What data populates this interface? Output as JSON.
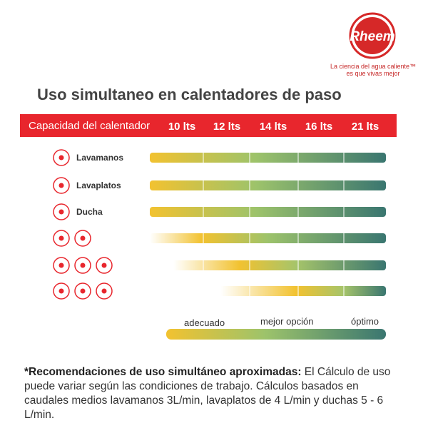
{
  "logo": {
    "brand": "Rheem",
    "tagline": [
      "La ciencia del agua caliente™",
      "es que vivas mejor"
    ]
  },
  "title": "Uso simultaneo en calentadores de paso",
  "table": {
    "header": [
      "Capacidad del calentador",
      "10 lts",
      "12 lts",
      "14 lts",
      "16 lts",
      "21 lts"
    ],
    "rows": [
      "Lavamanos",
      "Lavaplatos",
      "Ducha"
    ]
  },
  "legend": [
    "adecuado",
    "mejor opción",
    "óptimo"
  ],
  "note": {
    "bold": "*Recomendaciones de uso simultáneo aproximadas:",
    "text": " El Cálculo de uso puede variar según las condiciones de trabajo. Cálculos basados en caudales medios lavamanos 3L/min, lavaplatos de 4 L/min y duchas 5 - 6 L/min."
  }
}
